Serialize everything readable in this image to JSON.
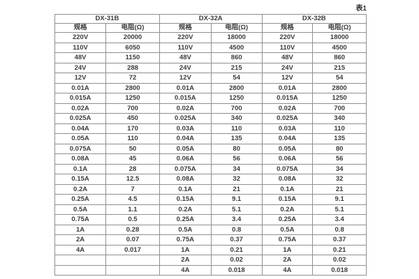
{
  "page": {
    "table_caption": "表1"
  },
  "table": {
    "groups": [
      {
        "name": "DX-31B",
        "spec_header": "规格",
        "resistance_header": "电阻(Ω)"
      },
      {
        "name": "DX-32A",
        "spec_header": "规格",
        "resistance_header": "电阻(Ω)"
      },
      {
        "name": "DX-32B",
        "spec_header": "规格",
        "resistance_header": "电阻(Ω)"
      }
    ],
    "rows": [
      [
        "220V",
        "20000",
        "220V",
        "18000",
        "220V",
        "18000"
      ],
      [
        "110V",
        "6050",
        "110V",
        "4500",
        "110V",
        "4500"
      ],
      [
        "48V",
        "1150",
        "48V",
        "860",
        "48V",
        "860"
      ],
      [
        "24V",
        "288",
        "24V",
        "215",
        "24V",
        "215"
      ],
      [
        "12V",
        "72",
        "12V",
        "54",
        "12V",
        "54"
      ],
      [
        "0.01A",
        "2800",
        "0.01A",
        "2800",
        "0.01A",
        "2800"
      ],
      [
        "0.015A",
        "1250",
        "0.015A",
        "1250",
        "0.015A",
        "1250"
      ],
      [
        "0.02A",
        "700",
        "0.02A",
        "700",
        "0.02A",
        "700"
      ],
      [
        "0.025A",
        "450",
        "0.025A",
        "340",
        "0.025A",
        "340"
      ],
      [
        "0.04A",
        "170",
        "0.03A",
        "110",
        "0.03A",
        "110"
      ],
      [
        "0.05A",
        "110",
        "0.04A",
        "135",
        "0.04A",
        "135"
      ],
      [
        "0.075A",
        "50",
        "0.05A",
        "80",
        "0.05A",
        "80"
      ],
      [
        "0.08A",
        "45",
        "0.06A",
        "56",
        "0.06A",
        "56"
      ],
      [
        "0.1A",
        "28",
        "0.075A",
        "34",
        "0.075A",
        "34"
      ],
      [
        "0.15A",
        "12.5",
        "0.08A",
        "32",
        "0.08A",
        "32"
      ],
      [
        "0.2A",
        "7",
        "0.1A",
        "21",
        "0.1A",
        "21"
      ],
      [
        "0.25A",
        "4.5",
        "0.15A",
        "9.1",
        "0.15A",
        "9.1"
      ],
      [
        "0.5A",
        "1.1",
        "0.2A",
        "5.1",
        "0.2A",
        "5.1"
      ],
      [
        "0.75A",
        "0.5",
        "0.25A",
        "3.4",
        "0.25A",
        "3.4"
      ],
      [
        "1A",
        "0.28",
        "0.5A",
        "0.8",
        "0.5A",
        "0.8"
      ],
      [
        "2A",
        "0.07",
        "0.75A",
        "0.37",
        "0.75A",
        "0.37"
      ],
      [
        "4A",
        "0.017",
        "1A",
        "0.21",
        "1A",
        "0.21"
      ],
      [
        "",
        "",
        "2A",
        "0.02",
        "2A",
        "0.02"
      ],
      [
        "",
        "",
        "4A",
        "0.018",
        "4A",
        "0.018"
      ]
    ]
  }
}
